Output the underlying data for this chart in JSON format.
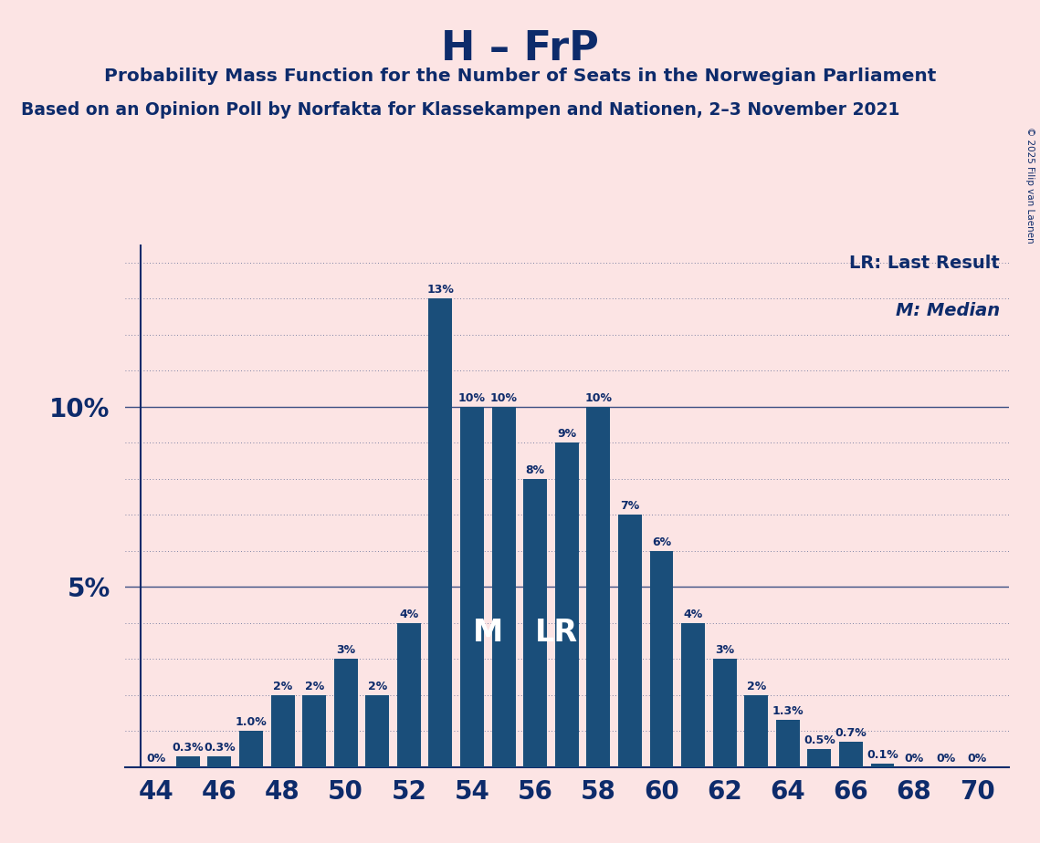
{
  "title": "H – FrP",
  "subtitle1": "Probability Mass Function for the Number of Seats in the Norwegian Parliament",
  "subtitle2": "Based on an Opinion Poll by Norfakta for Klassekampen and Nationen, 2–3 November 2021",
  "copyright": "© 2025 Filip van Laenen",
  "seats": [
    44,
    45,
    46,
    47,
    48,
    49,
    50,
    51,
    52,
    53,
    54,
    55,
    56,
    57,
    58,
    59,
    60,
    61,
    62,
    63,
    64,
    65,
    66,
    67,
    68,
    69,
    70
  ],
  "probabilities": [
    0.0,
    0.003,
    0.003,
    0.01,
    0.02,
    0.02,
    0.03,
    0.02,
    0.04,
    0.13,
    0.1,
    0.1,
    0.08,
    0.09,
    0.1,
    0.07,
    0.06,
    0.04,
    0.03,
    0.02,
    0.013,
    0.005,
    0.007,
    0.001,
    0.0,
    0.0,
    0.0
  ],
  "bar_color": "#1a4e7a",
  "background_color": "#fce4e4",
  "text_color": "#0d2b6b",
  "median_seat": 55,
  "lr_seat": 56,
  "xlim_min": 43,
  "xlim_max": 71,
  "ylim_min": 0,
  "ylim_max": 0.145,
  "xtick_labels": [
    "44",
    "46",
    "48",
    "50",
    "52",
    "54",
    "56",
    "58",
    "60",
    "62",
    "64",
    "66",
    "68",
    "70"
  ],
  "xtick_positions": [
    44,
    46,
    48,
    50,
    52,
    54,
    56,
    58,
    60,
    62,
    64,
    66,
    68,
    70
  ],
  "label_map": {
    "44": "0%",
    "45": "0.3%",
    "46": "0.3%",
    "47": "1.0%",
    "48": "2%",
    "49": "2%",
    "50": "3%",
    "51": "2%",
    "52": "4%",
    "53": "13%",
    "54": "10%",
    "55": "10%",
    "56": "8%",
    "57": "9%",
    "58": "10%",
    "59": "7%",
    "60": "6%",
    "61": "4%",
    "62": "3%",
    "63": "2%",
    "64": "1.3%",
    "65": "0.5%",
    "66": "0.7%",
    "67": "0.1%",
    "68": "0%",
    "69": "0%",
    "70": "0%"
  }
}
